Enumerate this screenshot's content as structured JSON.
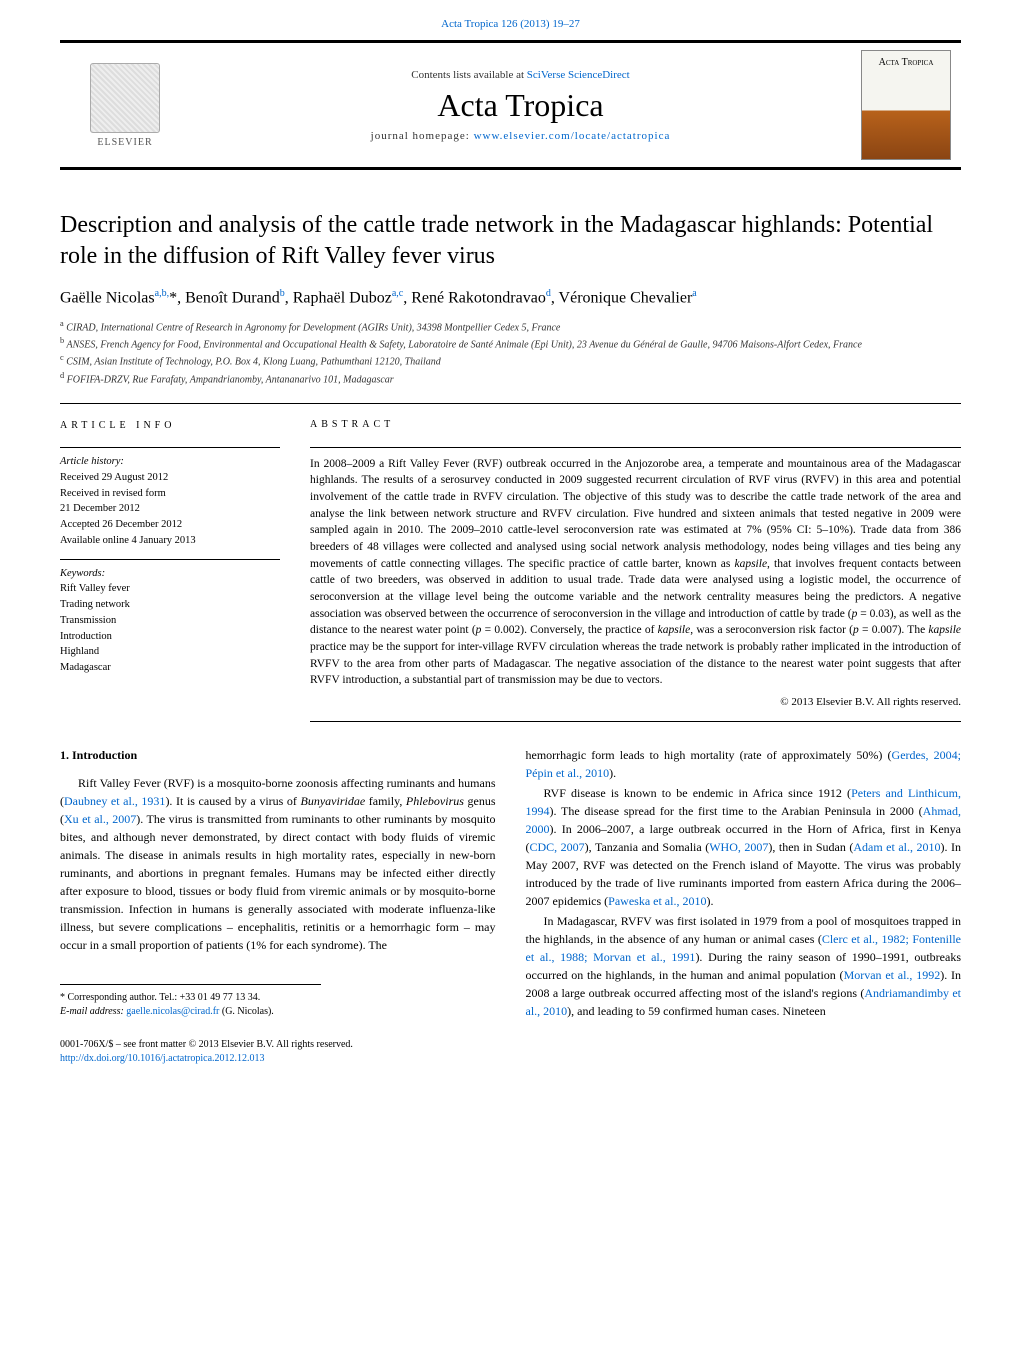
{
  "header": {
    "citation": "Acta Tropica 126 (2013) 19–27",
    "contents_prefix": "Contents lists available at ",
    "contents_link": "SciVerse ScienceDirect",
    "journal_name": "Acta Tropica",
    "homepage_prefix": "journal homepage: ",
    "homepage_link": "www.elsevier.com/locate/actatropica",
    "publisher_name": "ELSEVIER",
    "cover_label": "Acta Tropica"
  },
  "title": "Description and analysis of the cattle trade network in the Madagascar highlands: Potential role in the diffusion of Rift Valley fever virus",
  "authors_html": "Gaëlle Nicolas<sup>a,b,</sup>*, Benoît Durand<sup>b</sup>, Raphaël Duboz<sup>a,c</sup>, René Rakotondravao<sup>d</sup>, Véronique Chevalier<sup>a</sup>",
  "affiliations": [
    {
      "sup": "a",
      "text": "CIRAD, International Centre of Research in Agronomy for Development (AGIRs Unit), 34398 Montpellier Cedex 5, France"
    },
    {
      "sup": "b",
      "text": "ANSES, French Agency for Food, Environmental and Occupational Health & Safety, Laboratoire de Santé Animale (Epi Unit), 23 Avenue du Général de Gaulle, 94706 Maisons-Alfort Cedex, France"
    },
    {
      "sup": "c",
      "text": "CSIM, Asian Institute of Technology, P.O. Box 4, Klong Luang, Pathumthani 12120, Thailand"
    },
    {
      "sup": "d",
      "text": "FOFIFA-DRZV, Rue Farafaty, Ampandrianomby, Antananarivo 101, Madagascar"
    }
  ],
  "article_info": {
    "heading": "article info",
    "history_label": "Article history:",
    "history": [
      "Received 29 August 2012",
      "Received in revised form",
      "21 December 2012",
      "Accepted 26 December 2012",
      "Available online 4 January 2013"
    ],
    "keywords_label": "Keywords:",
    "keywords": [
      "Rift Valley fever",
      "Trading network",
      "Transmission",
      "Introduction",
      "Highland",
      "Madagascar"
    ]
  },
  "abstract": {
    "heading": "abstract",
    "text_html": "In 2008–2009 a Rift Valley Fever (RVF) outbreak occurred in the Anjozorobe area, a temperate and mountainous area of the Madagascar highlands. The results of a serosurvey conducted in 2009 suggested recurrent circulation of RVF virus (RVFV) in this area and potential involvement of the cattle trade in RVFV circulation. The objective of this study was to describe the cattle trade network of the area and analyse the link between network structure and RVFV circulation. Five hundred and sixteen animals that tested negative in 2009 were sampled again in 2010. The 2009–2010 cattle-level seroconversion rate was estimated at 7% (95% CI: 5–10%). Trade data from 386 breeders of 48 villages were collected and analysed using social network analysis methodology, nodes being villages and ties being any movements of cattle connecting villages. The specific practice of cattle barter, known as <em>kapsile</em>, that involves frequent contacts between cattle of two breeders, was observed in addition to usual trade. Trade data were analysed using a logistic model, the occurrence of seroconversion at the village level being the outcome variable and the network centrality measures being the predictors. A negative association was observed between the occurrence of seroconversion in the village and introduction of cattle by trade (<em>p</em> = 0.03), as well as the distance to the nearest water point (<em>p</em> = 0.002). Conversely, the practice of <em>kapsile</em>, was a seroconversion risk factor (<em>p</em> = 0.007). The <em>kapsile</em> practice may be the support for inter-village RVFV circulation whereas the trade network is probably rather implicated in the introduction of RVFV to the area from other parts of Madagascar. The negative association of the distance to the nearest water point suggests that after RVFV introduction, a substantial part of transmission may be due to vectors.",
    "copyright": "© 2013 Elsevier B.V. All rights reserved."
  },
  "body": {
    "section_heading": "1.  Introduction",
    "col1_html": "Rift Valley Fever (RVF) is a mosquito-borne zoonosis affecting ruminants and humans (<a href='#'>Daubney et al., 1931</a>). It is caused by a virus of <em>Bunyaviridae</em> family, <em>Phlebovirus</em> genus (<a href='#'>Xu et al., 2007</a>). The virus is transmitted from ruminants to other ruminants by mosquito bites, and although never demonstrated, by direct contact with body fluids of viremic animals. The disease in animals results in high mortality rates, especially in new-born ruminants, and abortions in pregnant females. Humans may be infected either directly after exposure to blood, tissues or body fluid from viremic animals or by mosquito-borne transmission. Infection in humans is generally associated with moderate influenza-like illness, but severe complications – encephalitis, retinitis or a hemorrhagic form – may occur in a small proportion of patients (1% for each syndrome). The",
    "col2_p1_html": "hemorrhagic form leads to high mortality (rate of approximately 50%) (<a href='#'>Gerdes, 2004; Pépin et al., 2010</a>).",
    "col2_p2_html": "RVF disease is known to be endemic in Africa since 1912 (<a href='#'>Peters and Linthicum, 1994</a>). The disease spread for the first time to the Arabian Peninsula in 2000 (<a href='#'>Ahmad, 2000</a>). In 2006–2007, a large outbreak occurred in the Horn of Africa, first in Kenya (<a href='#'>CDC, 2007</a>), Tanzania and Somalia (<a href='#'>WHO, 2007</a>), then in Sudan (<a href='#'>Adam et al., 2010</a>). In May 2007, RVF was detected on the French island of Mayotte. The virus was probably introduced by the trade of live ruminants imported from eastern Africa during the 2006–2007 epidemics (<a href='#'>Paweska et al., 2010</a>).",
    "col2_p3_html": "In Madagascar, RVFV was first isolated in 1979 from a pool of mosquitoes trapped in the highlands, in the absence of any human or animal cases (<a href='#'>Clerc et al., 1982; Fontenille et al., 1988; Morvan et al., 1991</a>). During the rainy season of 1990–1991, outbreaks occurred on the highlands, in the human and animal population (<a href='#'>Morvan et al., 1992</a>). In 2008 a large outbreak occurred affecting most of the island's regions (<a href='#'>Andriamandimby et al., 2010</a>), and leading to 59 confirmed human cases. Nineteen"
  },
  "footnotes": {
    "corresponding_label": "* Corresponding author. Tel.: +33 01 49 77 13 34.",
    "email_label": "E-mail address: ",
    "email": "gaelle.nicolas@cirad.fr",
    "email_whom": " (G. Nicolas)."
  },
  "footer": {
    "issn_line": "0001-706X/$ – see front matter © 2013 Elsevier B.V. All rights reserved.",
    "doi": "http://dx.doi.org/10.1016/j.actatropica.2012.12.013"
  },
  "colors": {
    "link": "#0066cc",
    "text": "#000000",
    "rule": "#000000"
  }
}
